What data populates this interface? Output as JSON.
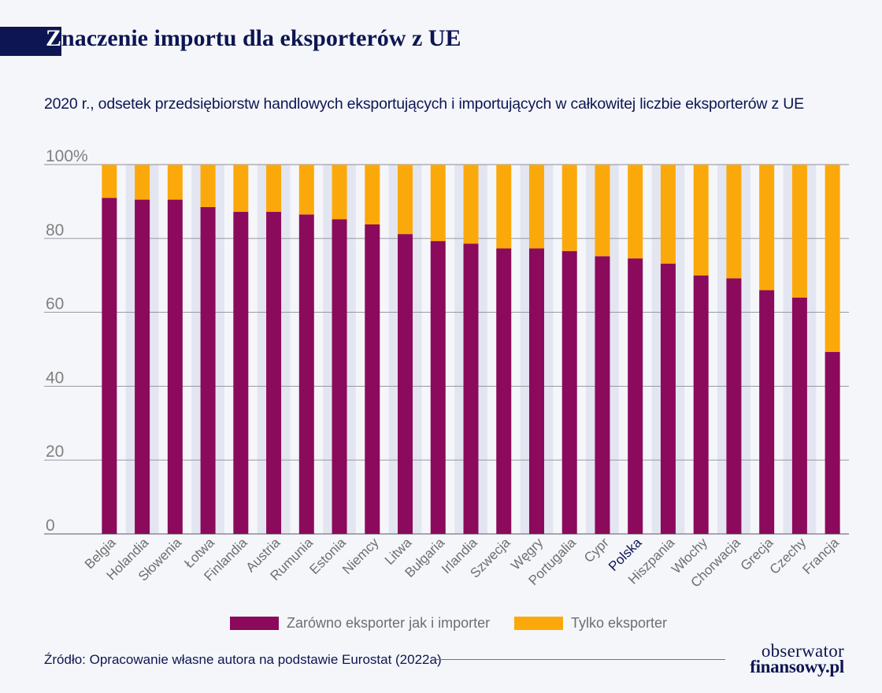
{
  "header": {
    "title_first": "Z",
    "title_rest": "naczenie importu dla eksporterów z UE",
    "subtitle": "2020 r., odsetek przedsiębiorstw handlowych eksportujących i importujących w całkowitej liczbie eksporterów z UE"
  },
  "colors": {
    "importer": "#8b0a5c",
    "exporter_only": "#fba90a",
    "band": "#e3e6f1",
    "grid": "#8a8c98",
    "navy": "#0d1652"
  },
  "chart_data": {
    "type": "bar",
    "stacked": true,
    "categories": [
      "Belgia",
      "Holandia",
      "Słowenia",
      "Łotwa",
      "Finlandia",
      "Austria",
      "Rumunia",
      "Estonia",
      "Niemcy",
      "Litwa",
      "Bułgaria",
      "Irlandia",
      "Szwecja",
      "Węgry",
      "Portugalia",
      "Cypr",
      "Polska",
      "Hiszpania",
      "Włochy",
      "Chorwacja",
      "Grecja",
      "Czechy",
      "Francja"
    ],
    "highlight_category": "Polska",
    "series": [
      {
        "name": "Zarówno eksporter jak i importer",
        "values": [
          91,
          90.5,
          90.5,
          88.5,
          87.2,
          87.2,
          86.5,
          85.2,
          83.8,
          81.2,
          79.3,
          78.6,
          77.3,
          77.3,
          76.6,
          75.2,
          74.6,
          73.2,
          70,
          69.2,
          66,
          64,
          49.3
        ]
      },
      {
        "name": "Tylko eksporter",
        "values": [
          9,
          9.5,
          9.5,
          11.5,
          12.8,
          12.8,
          13.5,
          14.8,
          16.2,
          18.8,
          20.7,
          21.4,
          22.7,
          22.7,
          23.4,
          24.8,
          25.4,
          26.8,
          30,
          30.8,
          34,
          36,
          50.7
        ]
      }
    ],
    "ylim": [
      0,
      100
    ],
    "yticks": [
      0,
      20,
      40,
      60,
      80,
      100
    ],
    "ytick_labels": [
      "0",
      "20",
      "40",
      "60",
      "80",
      "100%"
    ],
    "grid": true,
    "legend": "bottom"
  },
  "legend": {
    "items": [
      {
        "label": "Zarówno eksporter jak i importer"
      },
      {
        "label": "Tylko eksporter"
      }
    ]
  },
  "footer": {
    "source": "Źródło: Opracowanie własne autora na podstawie Eurostat (2022a)",
    "logo_line1": "obserwator",
    "logo_line2": "finansowy.pl"
  }
}
